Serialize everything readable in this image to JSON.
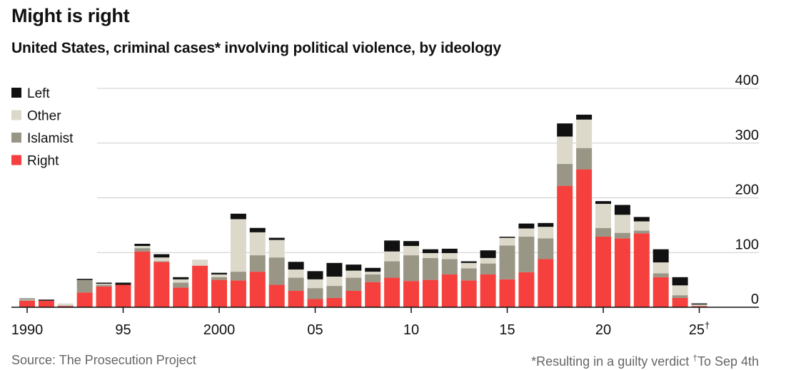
{
  "chart_data": {
    "type": "bar",
    "stacked": true,
    "title": "Might is right",
    "subtitle": "United States, criminal cases* involving political violence, by ideology",
    "source": "Source: The Prosecution Project",
    "footnote": "*Resulting in a guilty verdict",
    "footnote2_mark": "†",
    "footnote2_text": "To Sep 4th",
    "ylim": [
      0,
      400
    ],
    "yticks": [
      0,
      100,
      200,
      300,
      400
    ],
    "xtick_labels": [
      {
        "year": 1990,
        "label": "1990"
      },
      {
        "year": 1995,
        "label": "95"
      },
      {
        "year": 2000,
        "label": "2000"
      },
      {
        "year": 2005,
        "label": "05"
      },
      {
        "year": 2010,
        "label": "10"
      },
      {
        "year": 2015,
        "label": "15"
      },
      {
        "year": 2020,
        "label": "20"
      },
      {
        "year": 2025,
        "label": "25",
        "mark": "†"
      }
    ],
    "x": [
      1990,
      1991,
      1992,
      1993,
      1994,
      1995,
      1996,
      1997,
      1998,
      1999,
      2000,
      2001,
      2002,
      2003,
      2004,
      2005,
      2006,
      2007,
      2008,
      2009,
      2010,
      2011,
      2012,
      2013,
      2014,
      2015,
      2016,
      2017,
      2018,
      2019,
      2020,
      2021,
      2022,
      2023,
      2024,
      2025
    ],
    "series": [
      {
        "name": "Right",
        "color": "#f5403d",
        "values": [
          12,
          12,
          2,
          27,
          38,
          41,
          102,
          83,
          36,
          76,
          50,
          49,
          65,
          41,
          30,
          15,
          17,
          30,
          46,
          54,
          48,
          50,
          60,
          49,
          60,
          51,
          64,
          88,
          222,
          252,
          129,
          126,
          135,
          55,
          17,
          2
        ]
      },
      {
        "name": "Islamist",
        "color": "#999686",
        "values": [
          1,
          0,
          1,
          23,
          3,
          0,
          6,
          1,
          9,
          0,
          5,
          16,
          30,
          50,
          24,
          20,
          22,
          24,
          14,
          30,
          47,
          40,
          28,
          22,
          20,
          62,
          65,
          38,
          40,
          39,
          16,
          10,
          5,
          7,
          5,
          0
        ]
      },
      {
        "name": "Other",
        "color": "#dcd9cb",
        "values": [
          2,
          0,
          4,
          0,
          2,
          0,
          4,
          7,
          6,
          11,
          5,
          96,
          42,
          32,
          15,
          16,
          17,
          13,
          5,
          18,
          17,
          9,
          11,
          10,
          10,
          14,
          15,
          21,
          50,
          52,
          44,
          33,
          17,
          20,
          18,
          3
        ]
      },
      {
        "name": "Left",
        "color": "#111111",
        "values": [
          1,
          2,
          0,
          2,
          2,
          4,
          4,
          6,
          4,
          0,
          3,
          10,
          8,
          4,
          14,
          15,
          25,
          11,
          7,
          20,
          9,
          7,
          8,
          3,
          14,
          2,
          9,
          7,
          24,
          9,
          5,
          18,
          8,
          24,
          15,
          2
        ]
      }
    ],
    "legend_order": [
      "Left",
      "Other",
      "Islamist",
      "Right"
    ],
    "legend_position": "top-left"
  }
}
